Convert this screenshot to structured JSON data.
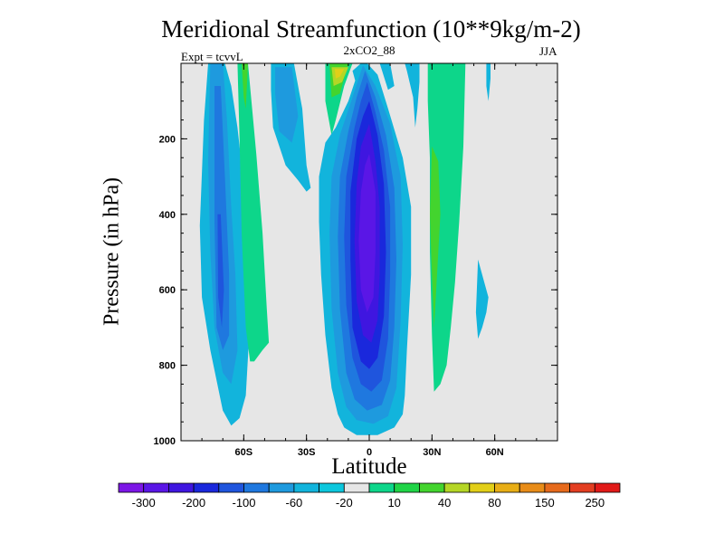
{
  "chart_data": {
    "type": "contour",
    "title": "Meridional Streamfunction (10**9kg/m-2)",
    "center_string": "2xCO2_88",
    "left_string": "Expt = tcvvL",
    "right_string": "JJA",
    "xlabel": "Latitude",
    "ylabel": "Pressure (in hPa)",
    "xlim": [
      -90,
      90
    ],
    "ylim": [
      1000,
      0
    ],
    "x_ticks": [
      {
        "value": -60,
        "label": "60S"
      },
      {
        "value": -30,
        "label": "30S"
      },
      {
        "value": 0,
        "label": "0"
      },
      {
        "value": 30,
        "label": "30N"
      },
      {
        "value": 60,
        "label": "60N"
      }
    ],
    "y_ticks": [
      {
        "value": 200,
        "label": "200"
      },
      {
        "value": 400,
        "label": "400"
      },
      {
        "value": 600,
        "label": "600"
      },
      {
        "value": 800,
        "label": "800"
      },
      {
        "value": 1000,
        "label": "1000"
      }
    ],
    "colorbar": {
      "colors": [
        "#7c16e6",
        "#5a16e6",
        "#3f16e0",
        "#1a28dc",
        "#1f55dd",
        "#1f78df",
        "#1e9ade",
        "#12b4dc",
        "#0cc7dd",
        "#e6e6e6",
        "#0dd68a",
        "#20d447",
        "#43d42e",
        "#b5d626",
        "#e2cf18",
        "#e8ae16",
        "#e88c18",
        "#e66a1c",
        "#e33e21",
        "#e11a18"
      ],
      "labels": [
        {
          "boundary": 1,
          "label": "-300"
        },
        {
          "boundary": 3,
          "label": "-200"
        },
        {
          "boundary": 5,
          "label": "-100"
        },
        {
          "boundary": 7,
          "label": "-60"
        },
        {
          "boundary": 9,
          "label": "-20"
        },
        {
          "boundary": 11,
          "label": "10"
        },
        {
          "boundary": 13,
          "label": "40"
        },
        {
          "boundary": 15,
          "label": "80"
        },
        {
          "boundary": 17,
          "label": "150"
        },
        {
          "boundary": 19,
          "label": "250"
        }
      ]
    },
    "regions": [
      {
        "color": "#12b4dc",
        "points": [
          [
            -77,
            0
          ],
          [
            -69,
            0
          ],
          [
            -66,
            60
          ],
          [
            -63,
            170
          ],
          [
            -60,
            320
          ],
          [
            -58,
            480
          ],
          [
            -57,
            680
          ],
          [
            -59,
            880
          ],
          [
            -62,
            940
          ],
          [
            -66,
            960
          ],
          [
            -70,
            920
          ],
          [
            -76,
            760
          ],
          [
            -80,
            620
          ],
          [
            -81,
            430
          ],
          [
            -79,
            150
          ]
        ]
      },
      {
        "color": "#1e9ade",
        "points": [
          [
            -76,
            0
          ],
          [
            -70,
            0
          ],
          [
            -68,
            150
          ],
          [
            -66,
            380
          ],
          [
            -64,
            560
          ],
          [
            -63,
            760
          ],
          [
            -66,
            850
          ],
          [
            -70,
            820
          ],
          [
            -74,
            700
          ],
          [
            -76,
            500
          ],
          [
            -77,
            260
          ]
        ]
      },
      {
        "color": "#1f78df",
        "points": [
          [
            -74,
            60
          ],
          [
            -71,
            60
          ],
          [
            -69,
            300
          ],
          [
            -67,
            560
          ],
          [
            -67,
            720
          ],
          [
            -70,
            760
          ],
          [
            -73,
            700
          ],
          [
            -74,
            420
          ]
        ]
      },
      {
        "color": "#1f55dd",
        "points": [
          [
            -72.5,
            400
          ],
          [
            -71,
            400
          ],
          [
            -69.5,
            600
          ],
          [
            -70.5,
            700
          ],
          [
            -72.2,
            620
          ]
        ]
      },
      {
        "color": "#0dd68a",
        "points": [
          [
            -63,
            0
          ],
          [
            -58,
            0
          ],
          [
            -56,
            120
          ],
          [
            -54,
            240
          ],
          [
            -51,
            450
          ],
          [
            -49,
            650
          ],
          [
            -48,
            740
          ],
          [
            -51,
            760
          ],
          [
            -55,
            790
          ],
          [
            -57,
            790
          ],
          [
            -59,
            700
          ],
          [
            -61,
            450
          ],
          [
            -62,
            200
          ]
        ]
      },
      {
        "color": "#43d42e",
        "points": [
          [
            -61,
            0
          ],
          [
            -58,
            0
          ],
          [
            -59,
            120
          ],
          [
            -60,
            90
          ]
        ]
      },
      {
        "color": "#12b4dc",
        "points": [
          [
            -47,
            0
          ],
          [
            -36,
            0
          ],
          [
            -32,
            120
          ],
          [
            -30,
            270
          ],
          [
            -28,
            330
          ],
          [
            -30,
            340
          ],
          [
            -34,
            310
          ],
          [
            -40,
            270
          ],
          [
            -46,
            170
          ],
          [
            -47,
            70
          ]
        ]
      },
      {
        "color": "#1e9ade",
        "points": [
          [
            -45,
            10
          ],
          [
            -37,
            10
          ],
          [
            -34,
            140
          ],
          [
            -37,
            210
          ],
          [
            -43,
            180
          ],
          [
            -45,
            80
          ]
        ]
      },
      {
        "color": "#12b4dc",
        "points": [
          [
            -8,
            20
          ],
          [
            -4,
            0
          ],
          [
            -2,
            40
          ],
          [
            -5,
            80
          ]
        ]
      },
      {
        "color": "#0dd68a",
        "points": [
          [
            -21,
            0
          ],
          [
            -8,
            0
          ],
          [
            -12,
            60
          ],
          [
            -16,
            150
          ],
          [
            -18,
            190
          ],
          [
            -21,
            100
          ]
        ]
      },
      {
        "color": "#43d42e",
        "points": [
          [
            -19,
            0
          ],
          [
            -10,
            0
          ],
          [
            -14,
            80
          ],
          [
            -18,
            90
          ]
        ]
      },
      {
        "color": "#b5d626",
        "points": [
          [
            -18,
            10
          ],
          [
            -10,
            10
          ],
          [
            -13,
            50
          ],
          [
            -17,
            60
          ]
        ]
      },
      {
        "color": "#e2cf18",
        "points": [
          [
            -16.5,
            15
          ],
          [
            -12,
            15
          ],
          [
            -14,
            35
          ],
          [
            -16,
            40
          ]
        ]
      },
      {
        "color": "#12b4dc",
        "points": [
          [
            -4,
            0
          ],
          [
            -1,
            0
          ],
          [
            4,
            30
          ],
          [
            9,
            120
          ],
          [
            16,
            250
          ],
          [
            20,
            380
          ],
          [
            20,
            560
          ],
          [
            18,
            760
          ],
          [
            17,
            880
          ],
          [
            16,
            930
          ],
          [
            12,
            965
          ],
          [
            4,
            985
          ],
          [
            -6,
            985
          ],
          [
            -12,
            965
          ],
          [
            -15,
            930
          ],
          [
            -18,
            860
          ],
          [
            -21,
            720
          ],
          [
            -23,
            560
          ],
          [
            -24,
            420
          ],
          [
            -24,
            300
          ],
          [
            -21,
            210
          ],
          [
            -16,
            170
          ],
          [
            -10,
            100
          ]
        ]
      },
      {
        "color": "#1e9ade",
        "points": [
          [
            -3,
            5
          ],
          [
            3,
            60
          ],
          [
            10,
            160
          ],
          [
            15,
            300
          ],
          [
            16,
            480
          ],
          [
            15,
            680
          ],
          [
            13,
            860
          ],
          [
            9,
            935
          ],
          [
            2,
            955
          ],
          [
            -6,
            945
          ],
          [
            -11,
            910
          ],
          [
            -15,
            820
          ],
          [
            -18,
            650
          ],
          [
            -19,
            450
          ],
          [
            -18,
            300
          ],
          [
            -14,
            190
          ],
          [
            -8,
            90
          ]
        ]
      },
      {
        "color": "#1f78df",
        "points": [
          [
            -2,
            20
          ],
          [
            3,
            90
          ],
          [
            8,
            190
          ],
          [
            12,
            330
          ],
          [
            13,
            520
          ],
          [
            12,
            700
          ],
          [
            10,
            840
          ],
          [
            6,
            905
          ],
          [
            -1,
            920
          ],
          [
            -7,
            890
          ],
          [
            -11,
            820
          ],
          [
            -14,
            650
          ],
          [
            -15,
            460
          ],
          [
            -14,
            300
          ],
          [
            -10,
            180
          ],
          [
            -6,
            90
          ]
        ]
      },
      {
        "color": "#1f55dd",
        "points": [
          [
            -1,
            50
          ],
          [
            3,
            130
          ],
          [
            7,
            230
          ],
          [
            10,
            380
          ],
          [
            10,
            560
          ],
          [
            9,
            730
          ],
          [
            6,
            840
          ],
          [
            1,
            870
          ],
          [
            -4,
            850
          ],
          [
            -8,
            780
          ],
          [
            -11,
            640
          ],
          [
            -12,
            460
          ],
          [
            -11,
            300
          ],
          [
            -7,
            170
          ],
          [
            -4,
            100
          ]
        ]
      },
      {
        "color": "#1a28dc",
        "points": [
          [
            0,
            100
          ],
          [
            4,
            190
          ],
          [
            7,
            320
          ],
          [
            8,
            500
          ],
          [
            7,
            670
          ],
          [
            4,
            780
          ],
          [
            0,
            810
          ],
          [
            -4,
            790
          ],
          [
            -8,
            700
          ],
          [
            -9,
            520
          ],
          [
            -9,
            340
          ],
          [
            -6,
            200
          ],
          [
            -3,
            140
          ]
        ]
      },
      {
        "color": "#3f16e0",
        "points": [
          [
            0,
            160
          ],
          [
            3,
            260
          ],
          [
            5,
            380
          ],
          [
            5,
            560
          ],
          [
            4,
            680
          ],
          [
            1,
            740
          ],
          [
            -3,
            720
          ],
          [
            -6,
            630
          ],
          [
            -7,
            470
          ],
          [
            -6,
            320
          ],
          [
            -4,
            220
          ]
        ]
      },
      {
        "color": "#5a16e6",
        "points": [
          [
            0,
            240
          ],
          [
            3,
            340
          ],
          [
            3,
            500
          ],
          [
            2,
            620
          ],
          [
            -1,
            660
          ],
          [
            -4,
            600
          ],
          [
            -5,
            470
          ],
          [
            -4,
            340
          ],
          [
            -2,
            270
          ]
        ]
      },
      {
        "color": "#12b4dc",
        "points": [
          [
            5,
            0
          ],
          [
            10,
            0
          ],
          [
            12,
            60
          ],
          [
            9,
            70
          ]
        ]
      },
      {
        "color": "#12b4dc",
        "points": [
          [
            17,
            0
          ],
          [
            24,
            0
          ],
          [
            24,
            50
          ],
          [
            23,
            120
          ],
          [
            22,
            170
          ],
          [
            21,
            90
          ],
          [
            18,
            20
          ]
        ]
      },
      {
        "color": "#0dd68a",
        "points": [
          [
            28,
            0
          ],
          [
            46,
            0
          ],
          [
            45,
            220
          ],
          [
            43,
            420
          ],
          [
            41,
            580
          ],
          [
            39,
            700
          ],
          [
            37,
            800
          ],
          [
            34,
            850
          ],
          [
            31,
            870
          ],
          [
            30,
            720
          ],
          [
            29,
            500
          ],
          [
            29,
            250
          ],
          [
            28,
            100
          ]
        ]
      },
      {
        "color": "#43d42e",
        "points": [
          [
            30,
            220
          ],
          [
            33,
            260
          ],
          [
            34,
            400
          ],
          [
            32,
            600
          ],
          [
            31,
            700
          ],
          [
            30,
            560
          ],
          [
            29,
            400
          ]
        ]
      },
      {
        "color": "#12b4dc",
        "points": [
          [
            56,
            0
          ],
          [
            58,
            0
          ],
          [
            58,
            40
          ],
          [
            57,
            100
          ],
          [
            56,
            60
          ]
        ]
      },
      {
        "color": "#12b4dc",
        "points": [
          [
            52,
            520
          ],
          [
            55,
            580
          ],
          [
            57,
            620
          ],
          [
            56,
            660
          ],
          [
            54,
            700
          ],
          [
            52,
            730
          ],
          [
            51,
            660
          ]
        ]
      }
    ]
  }
}
